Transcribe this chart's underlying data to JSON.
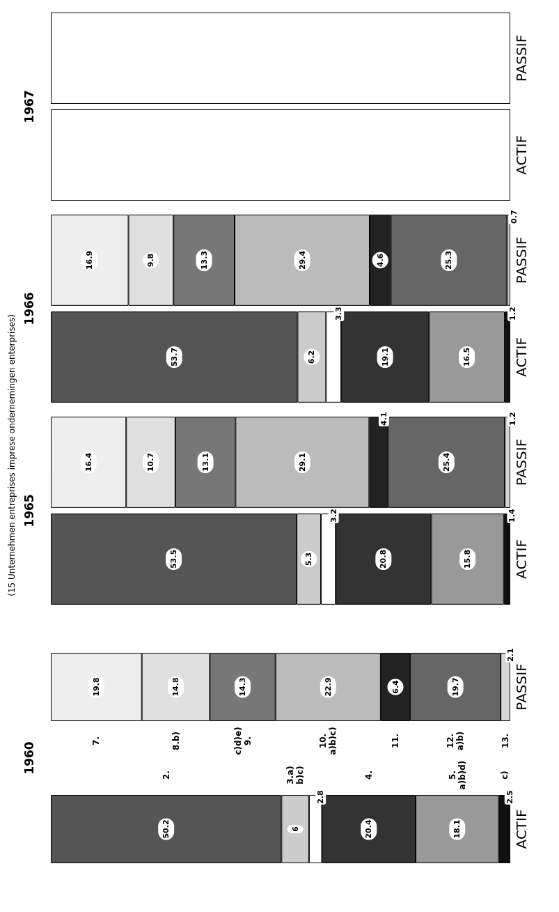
{
  "chart_data": [
    {
      "type": "other",
      "title": "1967",
      "subtitle": "(15 Unternehmen entreprises imprese ondernemingen enterprises)",
      "categories": [
        "PASSIF",
        "ACTIF"
      ]
    },
    {
      "type": "bar",
      "title": "1966",
      "orientation": "horizontal",
      "stacked": true,
      "categories": [
        "PASSIF",
        "ACTIF"
      ],
      "xlim": [
        0,
        100
      ],
      "tick_labels": "y",
      "data_labels": true,
      "series": [
        {
          "color": "#eeeeee",
          "values": [
            16.9,
            null
          ]
        },
        {
          "color": "#e0e0e0",
          "values": [
            9.8,
            null
          ]
        },
        {
          "color": "#777777",
          "values": [
            13.3,
            null
          ]
        },
        {
          "color": "#bbbbbb",
          "values": [
            29.4,
            null
          ]
        },
        {
          "color": "#222222",
          "values": [
            4.6,
            null
          ]
        },
        {
          "color": "#666666",
          "values": [
            25.3,
            null
          ]
        },
        {
          "color": "#d6d6d6",
          "values": [
            0.7,
            null
          ]
        },
        {
          "color": "#555555",
          "values": [
            null,
            53.7
          ]
        },
        {
          "color": "#cccccc",
          "values": [
            null,
            6.2
          ]
        },
        {
          "color": "#ffffff",
          "values": [
            null,
            3.3
          ]
        },
        {
          "color": "#333333",
          "values": [
            null,
            19.1
          ]
        },
        {
          "color": "#999999",
          "values": [
            null,
            16.5
          ]
        },
        {
          "color": "#111111",
          "values": [
            null,
            1.2
          ]
        }
      ]
    },
    {
      "type": "bar",
      "title": "1965",
      "orientation": "horizontal",
      "stacked": true,
      "categories": [
        "PASSIF",
        "ACTIF"
      ],
      "xlim": [
        0,
        100
      ],
      "tick_labels": "y",
      "data_labels": true,
      "series": [
        {
          "color": "#eeeeee",
          "values": [
            16.4,
            null
          ]
        },
        {
          "color": "#e0e0e0",
          "values": [
            10.7,
            null
          ]
        },
        {
          "color": "#777777",
          "values": [
            13.1,
            null
          ]
        },
        {
          "color": "#bbbbbb",
          "values": [
            29.1,
            null
          ]
        },
        {
          "color": "#222222",
          "values": [
            4.1,
            null
          ]
        },
        {
          "color": "#666666",
          "values": [
            25.4,
            null
          ]
        },
        {
          "color": "#d6d6d6",
          "values": [
            1.2,
            null
          ]
        },
        {
          "color": "#555555",
          "values": [
            null,
            53.5
          ]
        },
        {
          "color": "#cccccc",
          "values": [
            null,
            5.3
          ]
        },
        {
          "color": "#ffffff",
          "values": [
            null,
            3.2
          ]
        },
        {
          "color": "#333333",
          "values": [
            null,
            20.8
          ]
        },
        {
          "color": "#999999",
          "values": [
            null,
            15.8
          ]
        },
        {
          "color": "#111111",
          "values": [
            null,
            1.4
          ]
        }
      ]
    },
    {
      "type": "bar",
      "title": "1960",
      "orientation": "horizontal",
      "stacked": true,
      "categories": [
        "PASSIF",
        "ACTIF"
      ],
      "xlim": [
        0,
        100
      ],
      "tick_labels": "y",
      "data_labels": true,
      "series": [
        {
          "name": "7.",
          "color": "#eeeeee",
          "values": [
            19.8,
            null
          ]
        },
        {
          "name": "8.b)",
          "color": "#e0e0e0",
          "values": [
            14.8,
            null
          ]
        },
        {
          "name": "c)d)e)\n9.",
          "color": "#777777",
          "values": [
            14.3,
            null
          ]
        },
        {
          "name": "10.\na)b)c)",
          "color": "#bbbbbb",
          "values": [
            22.9,
            null
          ]
        },
        {
          "name": "11.",
          "color": "#222222",
          "values": [
            6.4,
            null
          ]
        },
        {
          "name": "12.\na)b)",
          "color": "#666666",
          "values": [
            19.7,
            null
          ]
        },
        {
          "name": "13.",
          "color": "#d6d6d6",
          "values": [
            2.1,
            null
          ]
        },
        {
          "name": "2.",
          "color": "#555555",
          "values": [
            null,
            50.2
          ]
        },
        {
          "name": "3.a)\nb)c)",
          "color": "#cccccc",
          "values": [
            null,
            6
          ]
        },
        {
          "color": "#ffffff",
          "values": [
            null,
            2.8
          ]
        },
        {
          "name": "4.",
          "color": "#333333",
          "values": [
            null,
            20.4
          ]
        },
        {
          "name": "5.\na)b)d)",
          "color": "#999999",
          "values": [
            null,
            18.1
          ]
        },
        {
          "name": "c)",
          "color": "#111111",
          "values": [
            null,
            2.5
          ]
        }
      ]
    }
  ]
}
